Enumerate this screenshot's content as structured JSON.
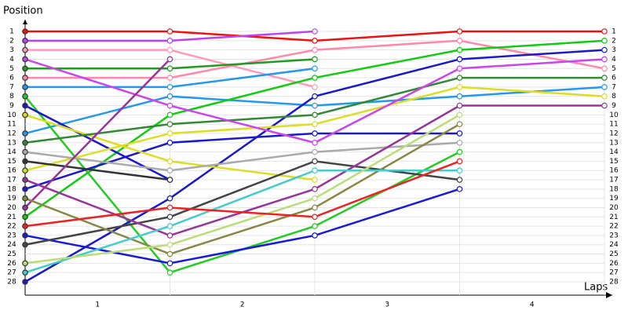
{
  "chart_data": {
    "type": "line",
    "title": "Position",
    "x_label": "Laps",
    "x": [
      0,
      1,
      2,
      3,
      4
    ],
    "xlim": [
      0,
      4
    ],
    "xticks": [
      {
        "value": 0.5,
        "label": "1"
      },
      {
        "value": 1.5,
        "label": "2"
      },
      {
        "value": 2.5,
        "label": "3"
      },
      {
        "value": 3.5,
        "label": "4"
      }
    ],
    "ylim": [
      1,
      28
    ],
    "y_reversed": true,
    "yticks": [
      1,
      2,
      3,
      4,
      5,
      6,
      7,
      8,
      9,
      10,
      11,
      12,
      13,
      14,
      15,
      16,
      17,
      18,
      19,
      20,
      21,
      22,
      23,
      24,
      25,
      26,
      27,
      28
    ],
    "grid": true,
    "series": [
      {
        "color": "#ee1111",
        "values": [
          1,
          1,
          2,
          1,
          1
        ]
      },
      {
        "color": "#bb44ee",
        "values": [
          2,
          2,
          1,
          null,
          null
        ]
      },
      {
        "color": "#ff99bb",
        "values": [
          3,
          3,
          7,
          null,
          null
        ]
      },
      {
        "color": "#ff88aa",
        "values": [
          6,
          6,
          3,
          2,
          5
        ]
      },
      {
        "color": "#229922",
        "values": [
          5,
          5,
          4,
          null,
          null
        ]
      },
      {
        "color": "#2299ee",
        "values": [
          7,
          7,
          5,
          null,
          null
        ]
      },
      {
        "color": "#2299ee",
        "values": [
          12,
          8,
          9,
          8,
          7
        ]
      },
      {
        "color": "#22cc22",
        "values": [
          8,
          27,
          22,
          14,
          null
        ]
      },
      {
        "color": "#11cc11",
        "values": [
          21,
          10,
          6,
          3,
          2
        ]
      },
      {
        "color": "#1a1acc",
        "values": [
          9,
          17,
          null,
          null,
          null
        ]
      },
      {
        "color": "#1a1acc",
        "values": [
          28,
          19,
          8,
          4,
          3
        ]
      },
      {
        "color": "#1a1acc",
        "values": [
          18,
          13,
          12,
          12,
          null
        ]
      },
      {
        "color": "#1a1add",
        "values": [
          23,
          26,
          23,
          18,
          null
        ]
      },
      {
        "color": "#dddd22",
        "values": [
          10,
          15,
          17,
          null,
          null
        ]
      },
      {
        "color": "#dddd22",
        "values": [
          16,
          12,
          11,
          7,
          8
        ]
      },
      {
        "color": "#338833",
        "values": [
          13,
          11,
          10,
          6,
          6
        ]
      },
      {
        "color": "#aaaaaa",
        "values": [
          14,
          16,
          14,
          13,
          null
        ]
      },
      {
        "color": "#444444",
        "values": [
          24,
          21,
          15,
          17,
          null
        ]
      },
      {
        "color": "#cc44ee",
        "values": [
          4,
          9,
          13,
          5,
          4
        ]
      },
      {
        "color": "#333333",
        "values": [
          15,
          17,
          null,
          null,
          null
        ]
      },
      {
        "color": "#993399",
        "values": [
          17,
          23,
          18,
          9,
          9
        ]
      },
      {
        "color": "#993399",
        "values": [
          20,
          4,
          null,
          null,
          null
        ]
      },
      {
        "color": "#888844",
        "values": [
          19,
          25,
          20,
          11,
          null
        ]
      },
      {
        "color": "#44cccc",
        "values": [
          27,
          22,
          16,
          16,
          null
        ]
      },
      {
        "color": "#bbdd77",
        "values": [
          26,
          24,
          19,
          10,
          null
        ]
      },
      {
        "color": "#ee2222",
        "values": [
          22,
          20,
          21,
          15,
          null
        ]
      }
    ]
  }
}
